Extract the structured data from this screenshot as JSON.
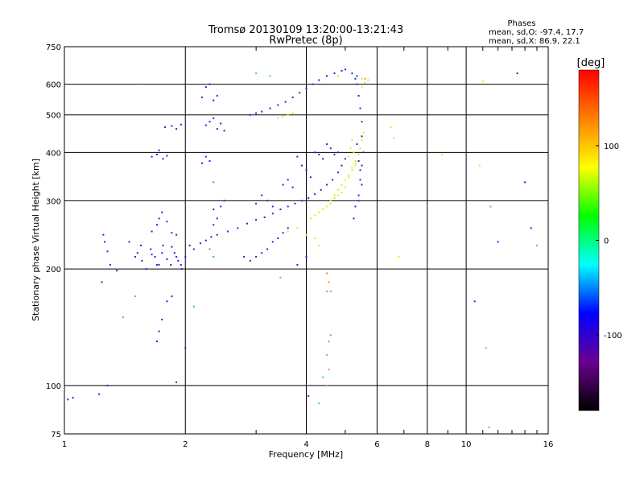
{
  "chart_data": {
    "type": "scatter",
    "title": "Tromsø 20130109 13:20:00-13:21:43",
    "subtitle": "RwPretec (8p)",
    "xlabel": "Frequency [MHz]",
    "ylabel": "Stationary phase Virtual Height [km]",
    "x_scale": "log",
    "y_scale": "log",
    "xlim": [
      1,
      16
    ],
    "ylim": [
      75,
      750
    ],
    "x_ticks": [
      1,
      2,
      4,
      6,
      8,
      10,
      16
    ],
    "x_tick_labels": [
      "1",
      "2",
      "4",
      "6",
      "8",
      "10",
      "16"
    ],
    "y_ticks": [
      75,
      100,
      200,
      300,
      400,
      500,
      600,
      750
    ],
    "y_tick_labels": [
      "75",
      "100",
      "200",
      "300",
      "400",
      "500",
      "600",
      "750"
    ],
    "grid": true,
    "phase_info": {
      "heading": "Phases",
      "line_o": "mean, sd,O: -97.4, 17.7",
      "line_x": "mean, sd,X: 86.9, 22.1"
    },
    "colorbar": {
      "label": "[deg]",
      "range": [
        -180,
        180
      ],
      "ticks": [
        100,
        0,
        -100
      ],
      "tick_labels": [
        "100",
        "0",
        "-100"
      ],
      "stops": [
        "#000000",
        "#6a0090",
        "#0000ff",
        "#00ffff",
        "#00ff00",
        "#ffff00",
        "#ff8000",
        "#ff0000"
      ]
    },
    "series": [
      {
        "phase_deg": -100,
        "color": "#2323e0",
        "points": [
          [
            1.02,
            92
          ],
          [
            1.05,
            93
          ],
          [
            1.22,
            95
          ],
          [
            1.28,
            100
          ],
          [
            1.25,
            245
          ],
          [
            1.26,
            235
          ],
          [
            1.28,
            222
          ],
          [
            1.24,
            185
          ],
          [
            1.3,
            205
          ],
          [
            1.35,
            198
          ],
          [
            1.45,
            235
          ],
          [
            1.52,
            220
          ],
          [
            1.56,
            210
          ],
          [
            1.6,
            200
          ],
          [
            1.64,
            225
          ],
          [
            1.68,
            215
          ],
          [
            1.72,
            205
          ],
          [
            1.76,
            230
          ],
          [
            1.8,
            212
          ],
          [
            1.84,
            205
          ],
          [
            1.88,
            220
          ],
          [
            1.92,
            210
          ],
          [
            1.96,
            200
          ],
          [
            2.0,
            215
          ],
          [
            2.05,
            230
          ],
          [
            2.1,
            225
          ],
          [
            2.18,
            233
          ],
          [
            2.25,
            237
          ],
          [
            2.32,
            242
          ],
          [
            2.4,
            245
          ],
          [
            1.65,
            218
          ],
          [
            1.7,
            205
          ],
          [
            1.75,
            220
          ],
          [
            1.85,
            228
          ],
          [
            1.9,
            215
          ],
          [
            1.95,
            205
          ],
          [
            1.55,
            230
          ],
          [
            1.5,
            215
          ],
          [
            1.8,
            165
          ],
          [
            1.85,
            170
          ],
          [
            1.75,
            148
          ],
          [
            1.72,
            138
          ],
          [
            1.7,
            130
          ],
          [
            1.9,
            102
          ],
          [
            2.0,
            125
          ],
          [
            1.65,
            250
          ],
          [
            1.7,
            260
          ],
          [
            1.72,
            270
          ],
          [
            1.75,
            280
          ],
          [
            1.8,
            265
          ],
          [
            1.85,
            248
          ],
          [
            1.9,
            245
          ],
          [
            1.65,
            390
          ],
          [
            1.7,
            395
          ],
          [
            1.72,
            405
          ],
          [
            1.76,
            385
          ],
          [
            1.8,
            392
          ],
          [
            1.78,
            465
          ],
          [
            1.85,
            468
          ],
          [
            1.9,
            460
          ],
          [
            1.95,
            472
          ],
          [
            2.25,
            470
          ],
          [
            2.3,
            480
          ],
          [
            2.35,
            490
          ],
          [
            2.4,
            460
          ],
          [
            2.45,
            475
          ],
          [
            2.5,
            455
          ],
          [
            2.2,
            555
          ],
          [
            2.25,
            590
          ],
          [
            2.3,
            600
          ],
          [
            2.35,
            545
          ],
          [
            2.4,
            560
          ],
          [
            2.2,
            375
          ],
          [
            2.25,
            390
          ],
          [
            2.3,
            380
          ],
          [
            2.35,
            260
          ],
          [
            2.4,
            270
          ],
          [
            2.45,
            290
          ],
          [
            2.5,
            300
          ],
          [
            2.35,
            285
          ],
          [
            2.55,
            250
          ],
          [
            2.7,
            255
          ],
          [
            2.85,
            262
          ],
          [
            3.0,
            268
          ],
          [
            3.15,
            272
          ],
          [
            3.3,
            278
          ],
          [
            3.45,
            285
          ],
          [
            3.6,
            290
          ],
          [
            3.75,
            295
          ],
          [
            3.9,
            300
          ],
          [
            4.05,
            305
          ],
          [
            4.2,
            312
          ],
          [
            4.35,
            320
          ],
          [
            4.5,
            330
          ],
          [
            4.65,
            340
          ],
          [
            4.8,
            355
          ],
          [
            4.9,
            370
          ],
          [
            5.0,
            385
          ],
          [
            2.8,
            215
          ],
          [
            2.9,
            210
          ],
          [
            3.0,
            215
          ],
          [
            3.1,
            220
          ],
          [
            3.2,
            225
          ],
          [
            3.3,
            235
          ],
          [
            3.4,
            240
          ],
          [
            3.5,
            248
          ],
          [
            3.6,
            255
          ],
          [
            3.0,
            295
          ],
          [
            3.1,
            310
          ],
          [
            3.2,
            300
          ],
          [
            3.3,
            290
          ],
          [
            3.5,
            330
          ],
          [
            3.6,
            340
          ],
          [
            3.7,
            325
          ],
          [
            3.8,
            390
          ],
          [
            3.9,
            370
          ],
          [
            4.0,
            360
          ],
          [
            4.1,
            345
          ],
          [
            4.2,
            400
          ],
          [
            4.3,
            395
          ],
          [
            4.4,
            385
          ],
          [
            4.5,
            420
          ],
          [
            4.6,
            410
          ],
          [
            4.7,
            395
          ],
          [
            4.8,
            400
          ],
          [
            2.9,
            500
          ],
          [
            3.0,
            505
          ],
          [
            3.1,
            510
          ],
          [
            3.25,
            520
          ],
          [
            3.4,
            530
          ],
          [
            3.55,
            540
          ],
          [
            3.7,
            555
          ],
          [
            3.85,
            570
          ],
          [
            4.0,
            585
          ],
          [
            4.15,
            600
          ],
          [
            4.3,
            615
          ],
          [
            4.5,
            630
          ],
          [
            4.7,
            640
          ],
          [
            4.9,
            650
          ],
          [
            5.0,
            655
          ],
          [
            5.35,
            600
          ],
          [
            5.4,
            560
          ],
          [
            5.45,
            520
          ],
          [
            5.5,
            480
          ],
          [
            5.5,
            440
          ],
          [
            5.55,
            400
          ],
          [
            5.5,
            370
          ],
          [
            5.45,
            340
          ],
          [
            5.4,
            310
          ],
          [
            5.3,
            290
          ],
          [
            5.25,
            270
          ],
          [
            5.35,
            420
          ],
          [
            5.4,
            380
          ],
          [
            5.45,
            360
          ],
          [
            5.5,
            330
          ],
          [
            5.4,
            300
          ],
          [
            5.2,
            640
          ],
          [
            5.3,
            620
          ],
          [
            5.35,
            630
          ],
          [
            4.0,
            215
          ],
          [
            3.8,
            205
          ],
          [
            4.05,
            94
          ],
          [
            10.5,
            165
          ],
          [
            12.0,
            235
          ],
          [
            14.5,
            255
          ],
          [
            14.0,
            335
          ],
          [
            13.4,
            640
          ]
        ]
      },
      {
        "phase_deg": 100,
        "color": "#e6e61a",
        "points": [
          [
            4.1,
            270
          ],
          [
            4.2,
            275
          ],
          [
            4.3,
            280
          ],
          [
            4.4,
            285
          ],
          [
            4.5,
            290
          ],
          [
            4.6,
            300
          ],
          [
            4.7,
            310
          ],
          [
            4.8,
            320
          ],
          [
            4.9,
            330
          ],
          [
            5.0,
            340
          ],
          [
            5.1,
            350
          ],
          [
            5.2,
            365
          ],
          [
            5.3,
            380
          ],
          [
            5.4,
            395
          ],
          [
            5.45,
            410
          ],
          [
            5.5,
            430
          ],
          [
            5.55,
            450
          ],
          [
            4.6,
            295
          ],
          [
            4.8,
            310
          ],
          [
            5.0,
            325
          ],
          [
            5.1,
            345
          ],
          [
            5.2,
            360
          ],
          [
            5.3,
            370
          ],
          [
            4.7,
            305
          ],
          [
            4.9,
            315
          ],
          [
            5.1,
            390
          ],
          [
            5.15,
            410
          ],
          [
            5.2,
            430
          ],
          [
            5.25,
            400
          ],
          [
            5.3,
            375
          ],
          [
            3.4,
            490
          ],
          [
            3.5,
            495
          ],
          [
            3.6,
            500
          ],
          [
            3.7,
            505
          ],
          [
            4.3,
            230
          ],
          [
            4.2,
            240
          ],
          [
            4.0,
            245
          ],
          [
            3.8,
            255
          ],
          [
            3.6,
            250
          ],
          [
            5.5,
            590
          ],
          [
            5.6,
            605
          ],
          [
            5.7,
            615
          ],
          [
            5.5,
            620
          ],
          [
            4.8,
            630
          ],
          [
            6.5,
            465
          ],
          [
            6.6,
            435
          ],
          [
            6.8,
            215
          ],
          [
            8.7,
            395
          ],
          [
            10.8,
            370
          ],
          [
            11.0,
            610
          ]
        ]
      },
      {
        "phase_deg": 45,
        "color": "#22c864",
        "points": [
          [
            2.35,
            335
          ],
          [
            2.3,
            225
          ],
          [
            2.25,
            200
          ],
          [
            2.35,
            215
          ],
          [
            1.55,
            600
          ],
          [
            2.1,
            160
          ]
        ]
      },
      {
        "phase_deg": 160,
        "color": "#f08c28",
        "points": [
          [
            4.5,
            195
          ],
          [
            4.55,
            185
          ],
          [
            4.6,
            175
          ],
          [
            4.6,
            135
          ],
          [
            4.55,
            130
          ],
          [
            4.5,
            120
          ],
          [
            4.55,
            110
          ],
          [
            4.5,
            100
          ],
          [
            3.45,
            190
          ],
          [
            11.5,
            290
          ],
          [
            11.2,
            125
          ],
          [
            15.0,
            230
          ],
          [
            5.6,
            620
          ]
        ]
      },
      {
        "phase_deg": 0,
        "color": "#2ec8d2",
        "points": [
          [
            3.0,
            640
          ],
          [
            3.25,
            630
          ],
          [
            4.5,
            175
          ],
          [
            4.4,
            105
          ],
          [
            4.3,
            90
          ],
          [
            1.4,
            150
          ],
          [
            1.5,
            170
          ],
          [
            11.4,
            78
          ]
        ]
      }
    ]
  }
}
